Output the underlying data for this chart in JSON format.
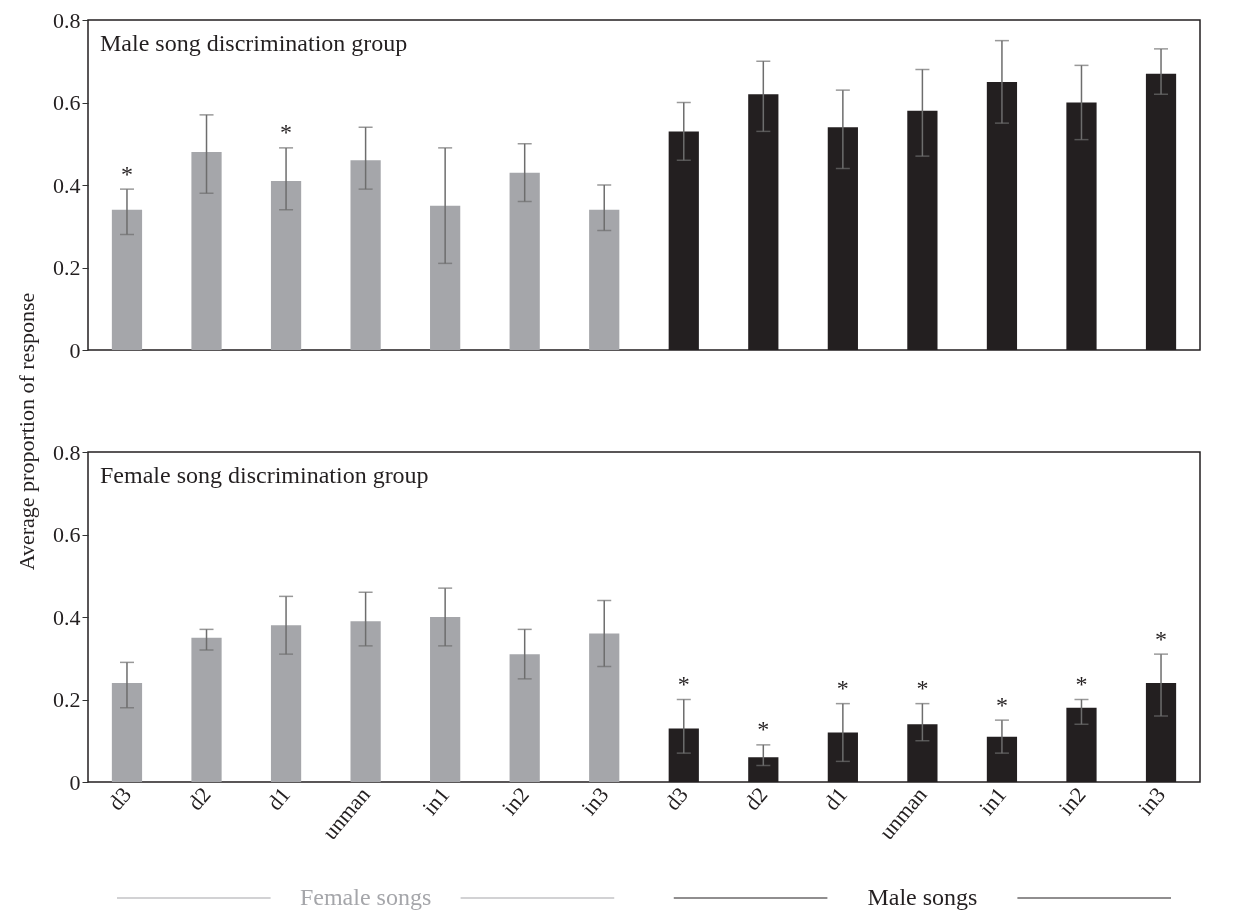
{
  "chart_data": [
    {
      "type": "bar",
      "title": "Male song discrimination group",
      "ylabel": "Average proportion of response",
      "categories": [
        null,
        null,
        null,
        null,
        null,
        null,
        null,
        null,
        null,
        null,
        null,
        null,
        null,
        null
      ],
      "series": [
        {
          "colors": [
            "#a5a6aa",
            "#a5a6aa",
            "#a5a6aa",
            "#a5a6aa",
            "#a5a6aa",
            "#a5a6aa",
            "#a5a6aa",
            "#231f20",
            "#231f20",
            "#231f20",
            "#231f20",
            "#231f20",
            "#231f20",
            "#231f20"
          ],
          "values": [
            0.34,
            0.48,
            0.41,
            0.46,
            0.35,
            0.43,
            0.34,
            0.53,
            0.62,
            0.54,
            0.58,
            0.65,
            0.6,
            0.67
          ],
          "errors": [
            [
              0.28,
              0.39
            ],
            [
              0.38,
              0.57
            ],
            [
              0.34,
              0.49
            ],
            [
              0.39,
              0.54
            ],
            [
              0.21,
              0.49
            ],
            [
              0.36,
              0.5
            ],
            [
              0.29,
              0.4
            ],
            [
              0.46,
              0.6
            ],
            [
              0.53,
              0.7
            ],
            [
              0.44,
              0.63
            ],
            [
              0.47,
              0.68
            ],
            [
              0.55,
              0.75
            ],
            [
              0.51,
              0.69
            ],
            [
              0.62,
              0.73
            ]
          ],
          "value_labels": [
            "*",
            null,
            "*",
            null,
            null,
            null,
            null,
            null,
            null,
            null,
            null,
            null,
            null,
            null
          ]
        }
      ],
      "ylim": [
        0,
        0.8
      ],
      "yticks": [
        0,
        0.2,
        0.4,
        0.6,
        0.8
      ],
      "tick_labels": "y"
    },
    {
      "type": "bar",
      "title": "Female song discrimination group",
      "categories": [
        "d3",
        "d2",
        "d1",
        "unman",
        "in1",
        "in2",
        "in3",
        "d3",
        "d2",
        "d1",
        "unman",
        "in1",
        "in2",
        "in3"
      ],
      "series": [
        {
          "name": "Female songs",
          "color": "#a5a6aa",
          "values": [
            0.24,
            0.35,
            0.38,
            0.39,
            0.4,
            0.31,
            0.36,
            null,
            null,
            null,
            null,
            null,
            null,
            null
          ],
          "errors": [
            [
              0.18,
              0.29
            ],
            [
              0.32,
              0.37
            ],
            [
              0.31,
              0.45
            ],
            [
              0.33,
              0.46
            ],
            [
              0.33,
              0.47
            ],
            [
              0.25,
              0.37
            ],
            [
              0.28,
              0.44
            ],
            null,
            null,
            null,
            null,
            null,
            null,
            null
          ]
        },
        {
          "name": "Male songs",
          "color": "#231f20",
          "values": [
            null,
            null,
            null,
            null,
            null,
            null,
            null,
            0.13,
            0.06,
            0.12,
            0.14,
            0.11,
            0.18,
            0.24
          ],
          "errors": [
            null,
            null,
            null,
            null,
            null,
            null,
            null,
            [
              0.07,
              0.2
            ],
            [
              0.04,
              0.09
            ],
            [
              0.05,
              0.19
            ],
            [
              0.1,
              0.19
            ],
            [
              0.07,
              0.15
            ],
            [
              0.14,
              0.2
            ],
            [
              0.16,
              0.31
            ]
          ],
          "value_labels": [
            null,
            null,
            null,
            null,
            null,
            null,
            null,
            "*",
            "*",
            "*",
            "*",
            "*",
            "*",
            "*"
          ]
        }
      ],
      "ylim": [
        0,
        0.8
      ],
      "yticks": [
        0,
        0.2,
        0.4,
        0.6,
        0.8
      ]
    }
  ]
}
